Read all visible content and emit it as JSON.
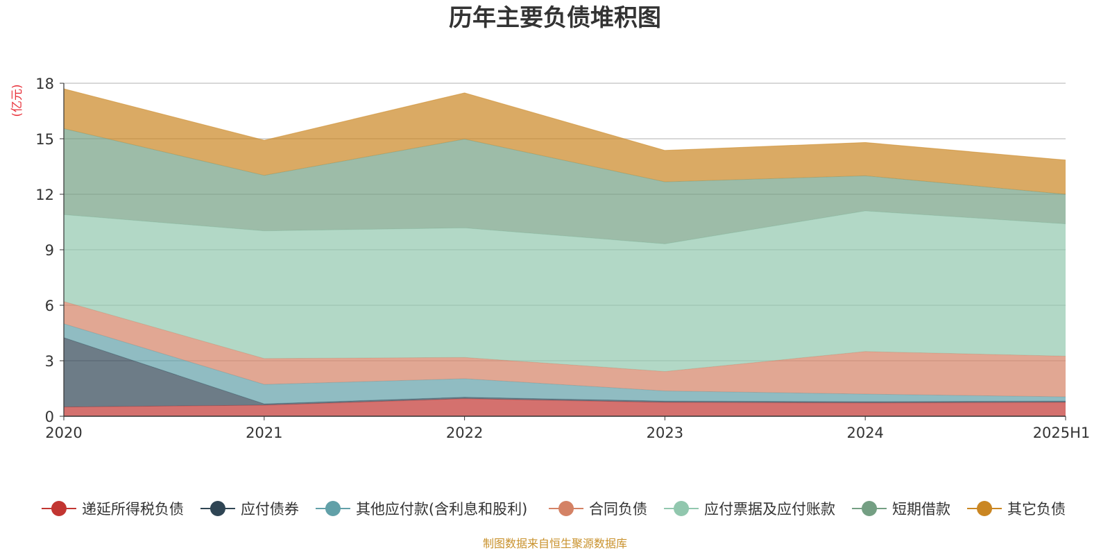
{
  "chart_data": {
    "type": "area",
    "title": "历年主要负债堆积图",
    "unit_label": "(亿元)",
    "source": "制图数据来自恒生聚源数据库",
    "categories": [
      "2020",
      "2021",
      "2022",
      "2023",
      "2024",
      "2025H1"
    ],
    "ylim": [
      0,
      18
    ],
    "yticks": [
      "0",
      "3",
      "6",
      "9",
      "12",
      "15",
      "18"
    ],
    "grid": true,
    "legend_position": "bottom",
    "stacked": true,
    "series": [
      {
        "name": "递延所得税负债",
        "color": "#c23531",
        "values": [
          0.5,
          0.6,
          0.95,
          0.75,
          0.72,
          0.75
        ]
      },
      {
        "name": "应付债券",
        "color": "#2f4554",
        "values": [
          3.75,
          0.07,
          0.08,
          0.07,
          0.07,
          0.07
        ]
      },
      {
        "name": "其他应付款(含利息和股利)",
        "color": "#61a0a8",
        "values": [
          0.75,
          1.05,
          1.0,
          0.55,
          0.41,
          0.23
        ]
      },
      {
        "name": "合同负债",
        "color": "#d48265",
        "values": [
          1.2,
          1.4,
          1.15,
          1.05,
          2.3,
          2.2
        ]
      },
      {
        "name": "应付票据及应付账款",
        "color": "#91c7ae",
        "values": [
          4.7,
          6.9,
          7.0,
          6.9,
          7.6,
          7.15
        ]
      },
      {
        "name": "短期借款",
        "color": "#749f83",
        "values": [
          4.65,
          3.0,
          4.8,
          3.35,
          1.9,
          1.6
        ]
      },
      {
        "name": "其它负债",
        "color": "#ca8622",
        "values": [
          2.15,
          1.9,
          2.5,
          1.7,
          1.8,
          1.85
        ]
      }
    ]
  }
}
